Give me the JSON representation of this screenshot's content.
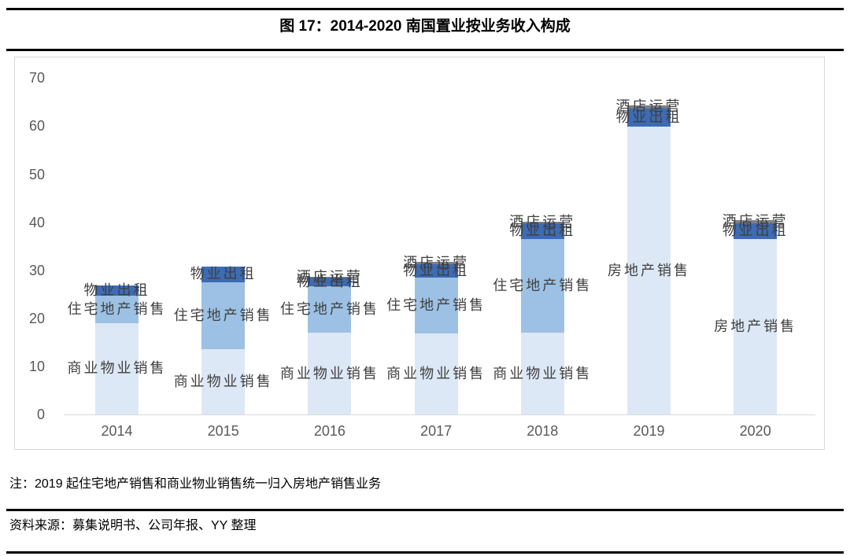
{
  "page": {
    "title": "图 17：2014-2020 南国置业按业务收入构成",
    "note": "注：2019 起住宅地产销售和商业物业销售统一归入房地产销售业务",
    "source": "资料来源：募集说明书、公司年报、YY 整理"
  },
  "colors": {
    "light_blue": "#DCE8F5",
    "medium_blue": "#9CC1E4",
    "dark_blue": "#3D6BB4",
    "gray_segment": "#7F7F7F",
    "axis_line": "#D9D9D9",
    "frame_border": "#D9D9D9",
    "axis_label": "#595959",
    "annotation_text": "#3F3F3F"
  },
  "chart_data": {
    "type": "bar",
    "stacked": true,
    "title": "图 17：2014-2020 南国置业按业务收入构成",
    "categories": [
      "2014",
      "2015",
      "2016",
      "2017",
      "2018",
      "2019",
      "2020"
    ],
    "ylim": [
      0,
      70
    ],
    "yticks": [
      0,
      10,
      20,
      30,
      40,
      50,
      60,
      70
    ],
    "grid": false,
    "legend": "none",
    "series": [
      {
        "name": "商业物业销售",
        "color_key": "light_blue",
        "values": [
          19.0,
          13.6,
          17.0,
          16.9,
          17.0,
          0,
          0
        ]
      },
      {
        "name": "住宅地产销售",
        "color_key": "medium_blue",
        "values": [
          5.7,
          13.9,
          9.7,
          11.6,
          19.5,
          0,
          0
        ]
      },
      {
        "name": "房地产销售",
        "color_key": "light_blue",
        "values": [
          0,
          0,
          0,
          0,
          0,
          59.9,
          36.5
        ]
      },
      {
        "name": "物业出租",
        "color_key": "dark_blue",
        "values": [
          2.1,
          3.3,
          1.8,
          2.8,
          3.3,
          3.8,
          3.3
        ]
      },
      {
        "name": "酒店运营",
        "color_key": "gray_segment",
        "values": [
          0,
          0,
          0.2,
          0.5,
          0.3,
          0.6,
          0.6
        ]
      }
    ],
    "bar_labels": {
      "2014": [
        "物业出租",
        "住宅地产销售",
        "商业物业销售"
      ],
      "2015": [
        "物业出租",
        "住宅地产销售",
        "商业物业销售"
      ],
      "2016": [
        "酒店运营",
        "物业出租",
        "住宅地产销售",
        "商业物业销售"
      ],
      "2017": [
        "酒店运营",
        "物业出租",
        "住宅地产销售",
        "商业物业销售"
      ],
      "2018": [
        "酒店运营",
        "物业出租",
        "住宅地产销售",
        "商业物业销售"
      ],
      "2019": [
        "酒店运营",
        "物业出租",
        "房地产销售"
      ],
      "2020": [
        "酒店运营",
        "物业出租",
        "房地产销售"
      ]
    }
  }
}
